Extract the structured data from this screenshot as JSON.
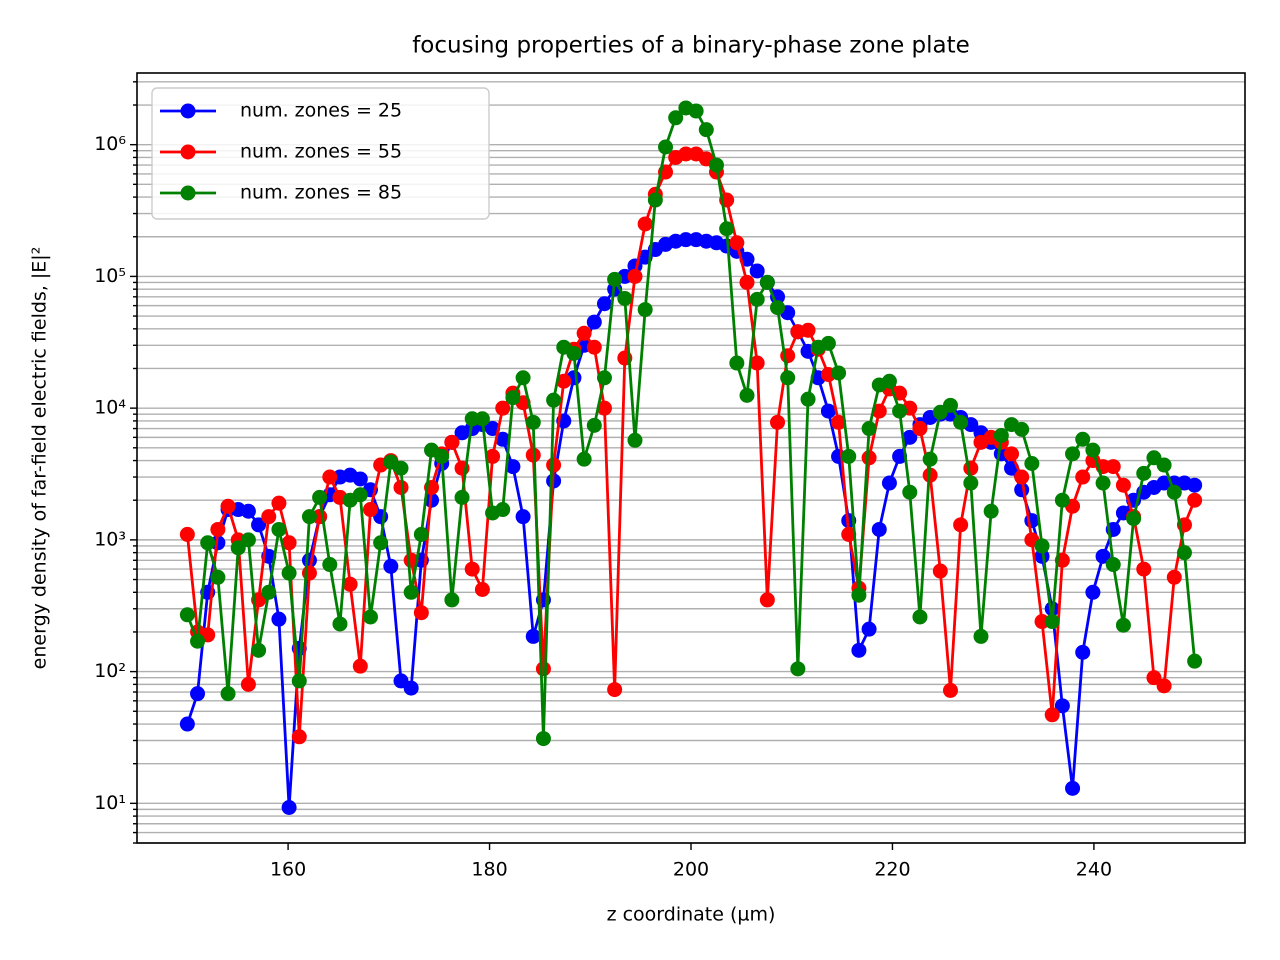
{
  "chart_data": {
    "type": "line",
    "title": "focusing properties of a binary-phase zone plate",
    "xlabel": "z coordinate (µm)",
    "ylabel": "energy density of far-field electric fields, |E|²",
    "yscale": "log",
    "grid": "y",
    "legend": "upper left",
    "xlim": [
      145,
      255
    ],
    "xticks": [
      160,
      180,
      200,
      220,
      240
    ],
    "ylim": [
      5,
      3500000
    ],
    "yticks": [
      {
        "value": 10,
        "label": "10¹"
      },
      {
        "value": 100,
        "label": "10²"
      },
      {
        "value": 1000,
        "label": "10³"
      },
      {
        "value": 10000,
        "label": "10⁴"
      },
      {
        "value": 100000,
        "label": "10⁵"
      },
      {
        "value": 1000000,
        "label": "10⁶"
      }
    ],
    "yminorticks": [
      5,
      6,
      7,
      8,
      9,
      20,
      30,
      40,
      50,
      60,
      70,
      80,
      90,
      200,
      300,
      400,
      500,
      600,
      700,
      800,
      900,
      2000,
      3000,
      4000,
      5000,
      6000,
      7000,
      8000,
      9000,
      20000,
      30000,
      40000,
      50000,
      60000,
      70000,
      80000,
      90000,
      200000,
      300000,
      400000,
      500000,
      600000,
      700000,
      800000,
      900000,
      2000000,
      3000000
    ],
    "x": [
      150,
      151.01,
      152.02,
      153.03,
      154.04,
      155.05,
      156.06,
      157.07,
      158.08,
      159.09,
      160.1,
      161.11,
      162.12,
      163.13,
      164.14,
      165.15,
      166.16,
      167.17,
      168.18,
      169.19,
      170.2,
      171.21,
      172.22,
      173.23,
      174.24,
      175.25,
      176.26,
      177.27,
      178.28,
      179.29,
      180.3,
      181.31,
      182.32,
      183.33,
      184.34,
      185.35,
      186.36,
      187.37,
      188.38,
      189.39,
      190.4,
      191.41,
      192.42,
      193.43,
      194.44,
      195.45,
      196.46,
      197.47,
      198.48,
      199.49,
      200.51,
      201.52,
      202.53,
      203.54,
      204.55,
      205.56,
      206.57,
      207.58,
      208.59,
      209.6,
      210.61,
      211.62,
      212.63,
      213.64,
      214.65,
      215.66,
      216.67,
      217.68,
      218.69,
      219.7,
      220.71,
      221.72,
      222.73,
      223.74,
      224.75,
      225.76,
      226.77,
      227.78,
      228.79,
      229.8,
      230.81,
      231.82,
      232.83,
      233.84,
      234.85,
      235.86,
      236.87,
      237.88,
      238.89,
      239.9,
      240.91,
      241.92,
      242.93,
      243.94,
      244.95,
      245.96,
      246.97,
      247.98,
      248.99,
      250
    ],
    "series": [
      {
        "name": "num. zones = 25",
        "color": "#0000ff",
        "values": [
          40,
          68,
          400,
          950,
          1700,
          1700,
          1650,
          1300,
          750,
          250,
          9.3,
          150,
          700,
          1500,
          2200,
          3000,
          3100,
          2900,
          2400,
          1500,
          630,
          85,
          75,
          700,
          2000,
          3800,
          5500,
          6500,
          7000,
          7500,
          7000,
          5800,
          3600,
          1500,
          185,
          350,
          2800,
          8000,
          17000,
          30000,
          45000,
          62000,
          80000,
          100000,
          120000,
          140000,
          160000,
          175000,
          185000,
          190000,
          190000,
          185000,
          180000,
          170000,
          155000,
          135000,
          110000,
          90000,
          70000,
          53000,
          38000,
          27000,
          17000,
          9500,
          4300,
          1400,
          145,
          210,
          1200,
          2700,
          4300,
          6000,
          7500,
          8500,
          9000,
          9000,
          8500,
          7500,
          6500,
          5500,
          4500,
          3500,
          2400,
          1400,
          750,
          300,
          55,
          13,
          140,
          400,
          750,
          1200,
          1600,
          2000,
          2300,
          2500,
          2700,
          2700,
          2700,
          2600
        ]
      },
      {
        "name": "num. zones = 55",
        "color": "#ff0000",
        "values": [
          1100,
          200,
          190,
          1200,
          1800,
          1000,
          80,
          350,
          1500,
          1900,
          950,
          32,
          560,
          1500,
          3000,
          2100,
          460,
          110,
          1700,
          3700,
          4000,
          2500,
          700,
          280,
          2500,
          4500,
          5500,
          3500,
          600,
          420,
          4300,
          10000,
          13000,
          11000,
          4400,
          105,
          3700,
          16000,
          28000,
          37000,
          29000,
          10000,
          73,
          24000,
          100000,
          250000,
          420000,
          620000,
          800000,
          850000,
          850000,
          780000,
          620000,
          380000,
          180000,
          90000,
          22000,
          350,
          7800,
          25000,
          38000,
          39000,
          28000,
          18000,
          7800,
          1100,
          430,
          4200,
          9500,
          14000,
          13000,
          10000,
          7000,
          3100,
          580,
          72,
          1300,
          3500,
          5500,
          6000,
          5500,
          4500,
          3000,
          1000,
          240,
          47,
          700,
          1800,
          3000,
          4000,
          3600,
          3600,
          2600,
          1500,
          600,
          90,
          78,
          520,
          1300,
          2000
        ]
      },
      {
        "name": "num. zones = 85",
        "color": "#008000",
        "values": [
          270,
          170,
          950,
          520,
          68,
          870,
          1000,
          145,
          400,
          1200,
          560,
          85,
          1500,
          2100,
          650,
          230,
          2000,
          2200,
          260,
          950,
          3900,
          3500,
          400,
          1100,
          4800,
          4300,
          350,
          2100,
          8300,
          8300,
          1600,
          1700,
          12000,
          17000,
          7800,
          31,
          11500,
          29000,
          26000,
          4100,
          7400,
          17000,
          95000,
          68000,
          5700,
          56000,
          380000,
          960000,
          1600000,
          1900000,
          1800000,
          1300000,
          700000,
          230000,
          22000,
          12500,
          67000,
          90000,
          58000,
          17000,
          105,
          11700,
          29000,
          31000,
          18500,
          4300,
          380,
          7000,
          15000,
          16000,
          9500,
          2300,
          260,
          4100,
          9300,
          10500,
          7800,
          2700,
          185,
          1650,
          6200,
          7500,
          6900,
          3800,
          900,
          240,
          2000,
          4500,
          5800,
          4800,
          2700,
          650,
          225,
          1450,
          3200,
          4200,
          3700,
          2300,
          800,
          120
        ]
      }
    ]
  }
}
